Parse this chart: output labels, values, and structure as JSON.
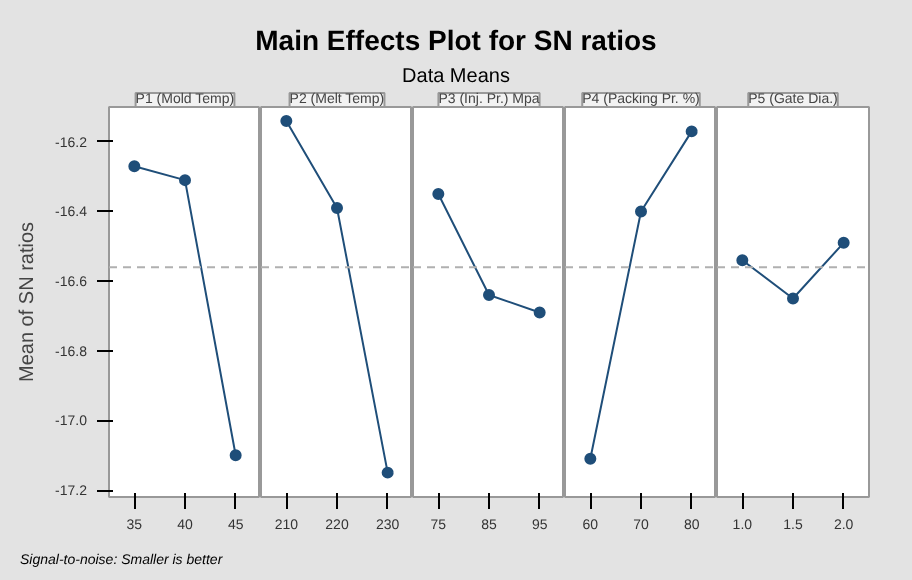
{
  "chart_data": [
    {
      "type": "line",
      "legend_title": "P1 (Mold Temp)",
      "ylabel": "Mean of SN ratios",
      "categories": [
        "35",
        "40",
        "45"
      ],
      "series": [
        {
          "color": "#1f4e79",
          "values": [
            -16.27,
            -16.31,
            -17.1
          ]
        }
      ],
      "ylim": [
        -17.22,
        -16.1
      ],
      "yticks": [
        -16.2,
        -16.4,
        -16.6,
        -16.8,
        {
          "value": -17.0,
          "label": "-17.0"
        },
        -17.2
      ],
      "ref_lines": [
        {
          "axis": "y",
          "value": -16.56,
          "line_style": "dashed",
          "color": "#b0b0b0"
        }
      ],
      "marker": "circle",
      "grid": false,
      "annotations": [
        "Signal-to-noise: Smaller is better"
      ]
    },
    {
      "type": "line",
      "legend_title": "P2 (Melt Temp)",
      "categories": [
        "210",
        "220",
        "230"
      ],
      "series": [
        {
          "color": "#1f4e79",
          "values": [
            -16.14,
            -16.39,
            -17.15
          ]
        }
      ],
      "ylim": [
        -17.22,
        -16.1
      ],
      "tick_labels": "x",
      "ref_lines": [
        {
          "axis": "y",
          "value": -16.56,
          "line_style": "dashed",
          "color": "#b0b0b0"
        }
      ],
      "marker": "circle",
      "grid": false
    },
    {
      "type": "line",
      "title": "Main Effects Plot for SN ratios",
      "subtitle": "Data Means",
      "legend_title": "P3 (Inj. Pr.) Mpa",
      "categories": [
        "75",
        "85",
        "95"
      ],
      "series": [
        {
          "color": "#1f4e79",
          "values": [
            -16.35,
            -16.64,
            -16.69
          ]
        }
      ],
      "ylim": [
        -17.22,
        -16.1
      ],
      "tick_labels": "x",
      "ref_lines": [
        {
          "axis": "y",
          "value": -16.56,
          "line_style": "dashed",
          "color": "#b0b0b0"
        }
      ],
      "marker": "circle",
      "grid": false
    },
    {
      "type": "line",
      "legend_title": "P4 (Packing Pr. %)",
      "categories": [
        "60",
        "70",
        "80"
      ],
      "series": [
        {
          "color": "#1f4e79",
          "values": [
            -17.11,
            -16.4,
            -16.17
          ]
        }
      ],
      "ylim": [
        -17.22,
        -16.1
      ],
      "tick_labels": "x",
      "ref_lines": [
        {
          "axis": "y",
          "value": -16.56,
          "line_style": "dashed",
          "color": "#b0b0b0"
        }
      ],
      "marker": "circle",
      "grid": false
    },
    {
      "type": "line",
      "legend_title": "P5 (Gate Dia.)",
      "categories": [
        "1.0",
        "1.5",
        "2.0"
      ],
      "series": [
        {
          "color": "#1f4e79",
          "values": [
            -16.54,
            -16.65,
            -16.49
          ]
        }
      ],
      "ylim": [
        -17.22,
        -16.1
      ],
      "tick_labels": "x",
      "ref_lines": [
        {
          "axis": "y",
          "value": -16.56,
          "line_style": "dashed",
          "color": "#b0b0b0"
        }
      ],
      "marker": "circle",
      "grid": false
    }
  ]
}
